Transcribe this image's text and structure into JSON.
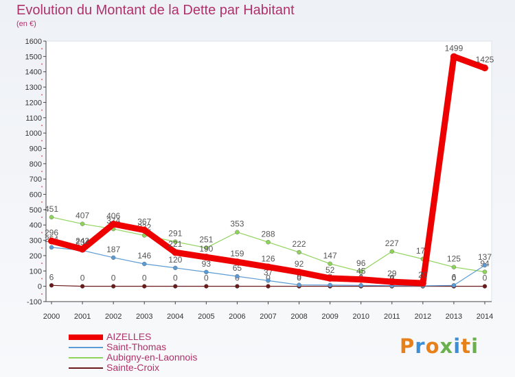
{
  "header": {
    "title": "Evolution du Montant de la Dette par Habitant",
    "subtitle": "(en €)"
  },
  "logo": {
    "text": "Proxiti",
    "colors": [
      "#e8801a",
      "#3b8fd6",
      "#e8801a",
      "#6ab04c",
      "#3b8fd6",
      "#e8801a",
      "#6ab04c"
    ]
  },
  "chart_data": {
    "type": "line",
    "title": "Evolution du Montant de la Dette par Habitant",
    "ylabel": "(en €)",
    "xlabel": "",
    "x": [
      "2000",
      "2001",
      "2002",
      "2003",
      "2004",
      "2005",
      "2006",
      "2007",
      "2008",
      "2009",
      "2010",
      "2011",
      "2012",
      "2013",
      "2014"
    ],
    "ylim": [
      -100,
      1600
    ],
    "yticks": [
      -100,
      0,
      100,
      200,
      300,
      400,
      500,
      600,
      700,
      800,
      900,
      1000,
      1100,
      1200,
      1300,
      1400,
      1500,
      1600
    ],
    "grid": false,
    "legend_position": "bottom-left",
    "series": [
      {
        "name": "Saint-Croix",
        "display": "Sainte-Croix",
        "values": [
          6,
          0,
          0,
          0,
          0,
          0,
          0,
          0,
          0,
          0,
          0,
          0,
          0,
          0,
          0
        ],
        "color": "#6a1a1a"
      },
      {
        "name": "Aubigny-en-Laonnois",
        "values": [
          451,
          407,
          374,
          332,
          291,
          251,
          353,
          288,
          222,
          147,
          96,
          227,
          178,
          125,
          94
        ],
        "color": "#8fd45a"
      },
      {
        "name": "Saint-Thomas",
        "values": [
          254,
          234,
          187,
          146,
          120,
          93,
          65,
          37,
          9,
          8,
          6,
          4,
          3,
          6,
          137
        ],
        "color": "#5b9bd5"
      },
      {
        "name": "AIZELLES",
        "values": [
          296,
          242,
          406,
          367,
          221,
          190,
          159,
          126,
          92,
          52,
          45,
          29,
          20,
          1499,
          1425
        ],
        "color": "#ee0000"
      }
    ],
    "legend_order": [
      "AIZELLES",
      "Saint-Thomas",
      "Aubigny-en-Laonnois",
      "Sainte-Croix"
    ]
  }
}
